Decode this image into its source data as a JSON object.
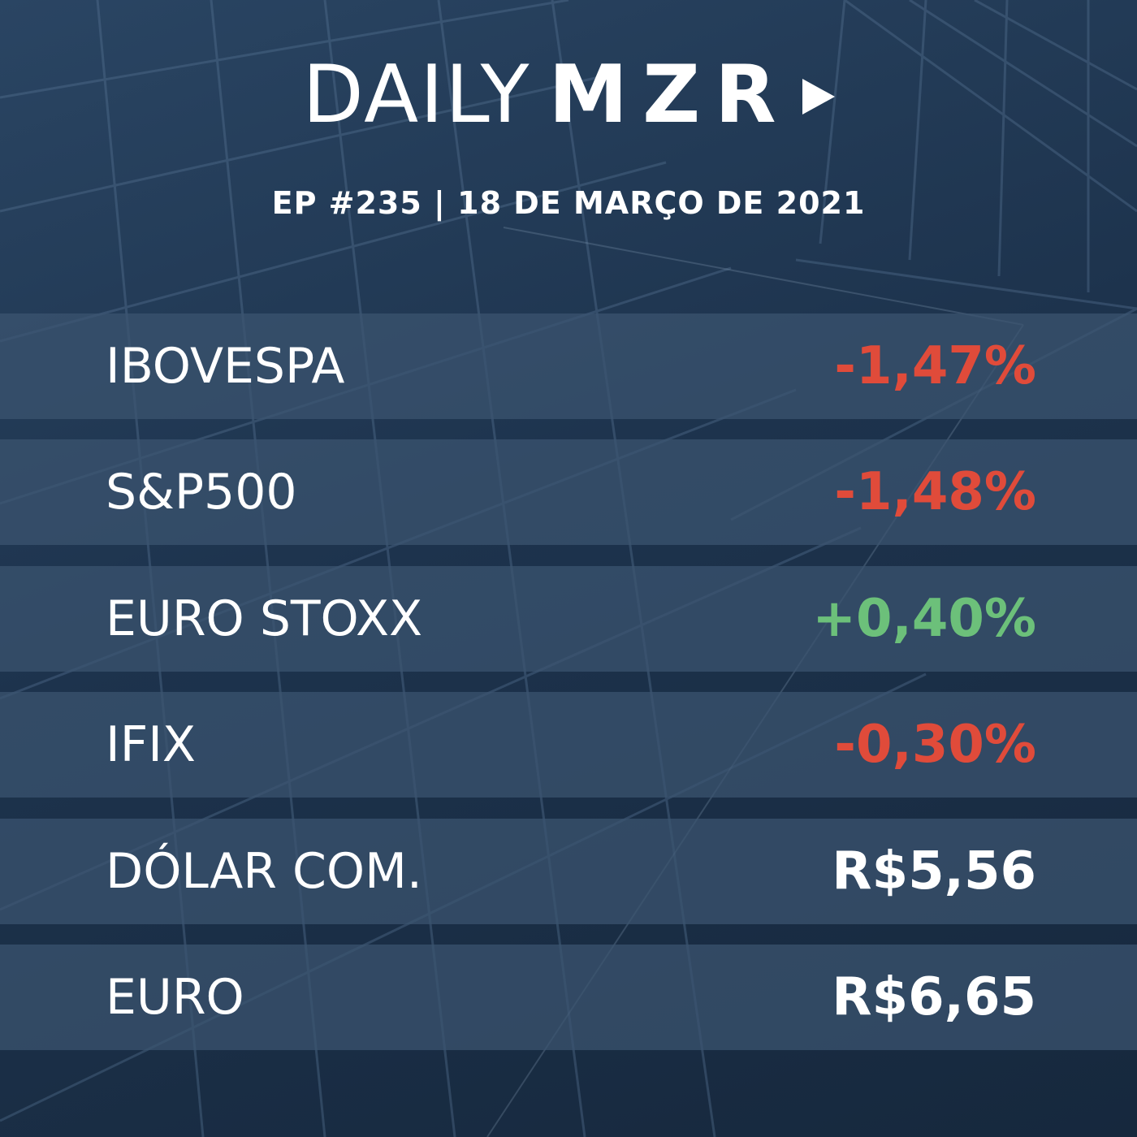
{
  "header": {
    "logo_light": "DAILY",
    "logo_bold": "MZR",
    "logo_icon": "play-icon",
    "subtitle": "EP #235 | 18 DE MARÇO DE 2021"
  },
  "colors": {
    "negative": "#e04b3a",
    "positive": "#6cc07a",
    "neutral": "#ffffff"
  },
  "rows": [
    {
      "label": "IBOVESPA",
      "value": "-1,47%",
      "trend": "negative"
    },
    {
      "label": "S&P500",
      "value": "-1,48%",
      "trend": "negative"
    },
    {
      "label": "EURO STOXX",
      "value": "+0,40%",
      "trend": "positive"
    },
    {
      "label": "IFIX",
      "value": "-0,30%",
      "trend": "negative"
    },
    {
      "label": "DÓLAR COM.",
      "value": "R$5,56",
      "trend": "neutral"
    },
    {
      "label": "EURO",
      "value": "R$6,65",
      "trend": "neutral"
    }
  ]
}
